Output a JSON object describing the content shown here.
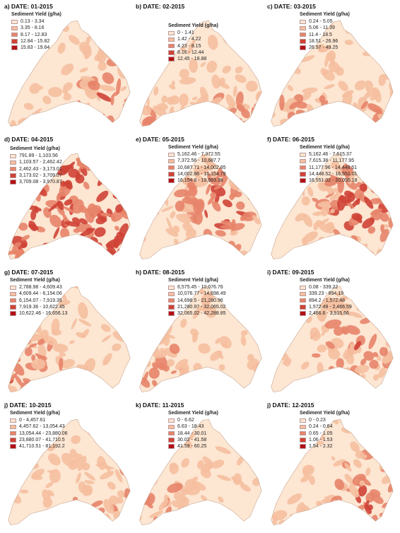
{
  "panels": [
    {
      "title": "a) DATE: 01-2015",
      "legend_title": "Sediment Yield (g/ha)",
      "classes": [
        "0.13 - 3.34",
        "3.35 - 8.16",
        "8.17 - 12.83",
        "12.84 - 15.82",
        "15.83 - 19.64"
      ],
      "hot": "south-east",
      "intensity": 0.55
    },
    {
      "title": "b) DATE: 02-2015",
      "legend_title": "Sediment Yield (g/ha)",
      "classes": [
        "0 - 1.41",
        "1.42 - 4.22",
        "4.23 - 8.15",
        "8.16 - 12.44",
        "12.45 - 18.88"
      ],
      "hot": "south",
      "intensity": 0.45
    },
    {
      "title": "c) DATE: 03-2015",
      "legend_title": "Sediment Yield (g/ha)",
      "classes": [
        "0.24 - 5.05",
        "5.06 - 11.39",
        "11.4 - 18.5",
        "18.51 - 26.96",
        "26.97 - 49.25"
      ],
      "hot": "south",
      "intensity": 0.45
    },
    {
      "title": "d) DATE: 04-2015",
      "legend_title": "Sediment Yield (g/ha)",
      "classes": [
        "791.89 - 1,103.56",
        "1,103.57 - 2,462.42",
        "2,462.43 - 3,173.01",
        "3,173.02 - 3,709.07",
        "3,709.08 - 3,970.87"
      ],
      "hot": "all",
      "intensity": 0.85
    },
    {
      "title": "e) DATE: 05-2015",
      "legend_title": "Sediment Yield (g/ha)",
      "classes": [
        "5,162.46 - 7,372.55",
        "7,372.56 - 10,687.7",
        "10,687.71 - 14,002.85",
        "14,002.86 - 16,154.79",
        "16,154.8 - 19,993.38"
      ],
      "hot": "east",
      "intensity": 0.7
    },
    {
      "title": "f) DATE: 06-2015",
      "legend_title": "Sediment Yield (g/ha)",
      "classes": [
        "5,162.46 - 7,615.37",
        "7,615.38 - 11,177.95",
        "11,177.96 - 14,448.51",
        "14,448.52 - 16,551.01",
        "16,551.02 - 20,055.18"
      ],
      "hot": "east",
      "intensity": 0.7
    },
    {
      "title": "g) DATE: 07-2015",
      "legend_title": "Sediment Yield (g/ha)",
      "classes": [
        "2,788.98 - 4,609.43",
        "4,609.44 - 6,154.06",
        "6,154.07 - 7,919.35",
        "7,919.36 - 10,622.45",
        "10,622.46 - 16,656.13"
      ],
      "hot": "west",
      "intensity": 0.5
    },
    {
      "title": "h) DATE: 08-2015",
      "legend_title": "Sediment Yield (g/ha)",
      "classes": [
        "6,575.45 - 10,076.76",
        "10,076.77 - 14,698.49",
        "14,698.5 - 21,280.96",
        "21,280.97 - 32,065.02",
        "32,065.02 - 42,288.85"
      ],
      "hot": "west",
      "intensity": 0.4
    },
    {
      "title": "i) DATE: 09-2015",
      "legend_title": "Sediment Yield (g/ha)",
      "classes": [
        "0.08 - 339.22",
        "339.23 - 894.19",
        "894.2 - 1,572.48",
        "1,572.49 - 2,466.59",
        "2,466.6 - 3,915.66"
      ],
      "hot": "east",
      "intensity": 0.5
    },
    {
      "title": "j) DATE: 10-2015",
      "legend_title": "Sediment Yield (g/ha)",
      "classes": [
        "0 - 4,457.61",
        "4,457.62 - 13,054.43",
        "13,054.44 - 23,880.06",
        "23,880.07 - 41,710.5",
        "41,710.51 - 81,192.2"
      ],
      "hot": "south-east",
      "intensity": 0.35
    },
    {
      "title": "k) DATE: 11-2015",
      "legend_title": "Sediment Yield (g/ha)",
      "classes": [
        "0 - 6.62",
        "6.63 - 18.43",
        "18.44 - 30.01",
        "30.02 - 41.58",
        "41.59 - 60.25"
      ],
      "hot": "west",
      "intensity": 0.3
    },
    {
      "title": "j) DATE: 12-2015",
      "legend_title": "Sediment Yield (g/ha)",
      "classes": [
        "0 - 0.23",
        "0.24 - 0.64",
        "0.65 - 1.05",
        "1.06 - 1.53",
        "1.54 - 2.32"
      ],
      "hot": "south-east",
      "intensity": 0.55
    }
  ],
  "palette": [
    "#fde6d2",
    "#f5bfa0",
    "#e7846a",
    "#cf4236",
    "#b30f16"
  ]
}
